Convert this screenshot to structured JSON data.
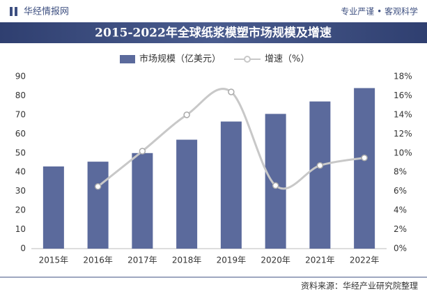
{
  "header": {
    "brand": "华经情报网",
    "slogan": "专业严谨 • 客观科学"
  },
  "chart_data": {
    "type": "bar_line",
    "title": "2015-2022年全球纸浆模塑市场规模及增速",
    "categories": [
      "2015年",
      "2016年",
      "2017年",
      "2018年",
      "2019年",
      "2020年",
      "2021年",
      "2022年"
    ],
    "series": [
      {
        "name": "市场规模（亿美元）",
        "color": "#5b6a9c",
        "type": "bar",
        "values": [
          43,
          45.5,
          50,
          57,
          66.5,
          70.5,
          77,
          84
        ]
      },
      {
        "name": "增速（%）",
        "color": "#c8c8c8",
        "type": "line",
        "axis": "y2",
        "values": [
          null,
          6.5,
          10.2,
          14,
          16.4,
          6.6,
          8.7,
          9.5
        ]
      }
    ],
    "ylim": [
      0,
      90
    ],
    "yticks": [
      0,
      10,
      20,
      30,
      40,
      50,
      60,
      70,
      80,
      90
    ],
    "y2lim": [
      0,
      18
    ],
    "y2ticks": [
      {
        "value": 0,
        "label": "0%"
      },
      {
        "value": 2,
        "label": "2%"
      },
      {
        "value": 4,
        "label": "4%"
      },
      {
        "value": 6,
        "label": "6%"
      },
      {
        "value": 8,
        "label": "8%"
      },
      {
        "value": 10,
        "label": "10%"
      },
      {
        "value": 12,
        "label": "12%"
      },
      {
        "value": 14,
        "label": "14%"
      },
      {
        "value": 16,
        "label": "16%"
      },
      {
        "value": 18,
        "label": "18%"
      }
    ],
    "grid": false,
    "source": "资料来源：华经产业研究院整理"
  }
}
